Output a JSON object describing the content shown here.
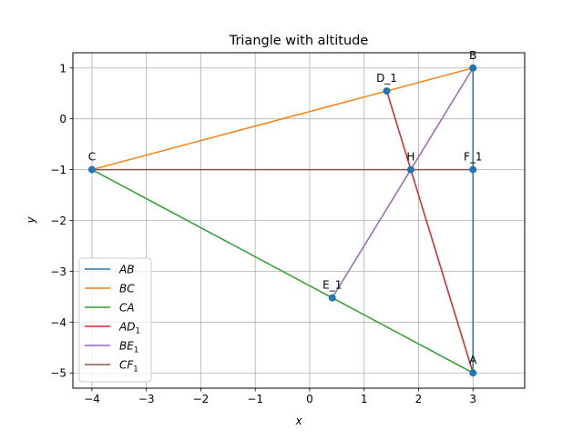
{
  "chart_data": {
    "type": "line",
    "title": "Triangle with altitude",
    "xlabel": "x",
    "ylabel": "y",
    "xlim": [
      -4.35,
      3.95
    ],
    "ylim": [
      -5.3,
      1.3
    ],
    "grid": true,
    "legend_position": "lower-left",
    "xticks": [
      -4,
      -3,
      -2,
      -1,
      0,
      1,
      2,
      3
    ],
    "xtick_labels": [
      "−4",
      "−3",
      "−2",
      "−1",
      "0",
      "1",
      "2",
      "3"
    ],
    "yticks": [
      -5,
      -4,
      -3,
      -2,
      -1,
      0,
      1
    ],
    "ytick_labels": [
      "−5",
      "−4",
      "−3",
      "−2",
      "−1",
      "0",
      "1"
    ],
    "series": [
      {
        "name": "AB",
        "sub": "",
        "color": "#1f77b4",
        "points": [
          [
            3,
            -5
          ],
          [
            3,
            1
          ]
        ]
      },
      {
        "name": "BC",
        "sub": "",
        "color": "#ff7f0e",
        "points": [
          [
            3,
            1
          ],
          [
            -4,
            -1
          ]
        ]
      },
      {
        "name": "CA",
        "sub": "",
        "color": "#2ca02c",
        "points": [
          [
            -4,
            -1
          ],
          [
            3,
            -5
          ]
        ]
      },
      {
        "name": "AD",
        "sub": "1",
        "color": "#d62728",
        "points": [
          [
            3,
            -5
          ],
          [
            1.415,
            0.547
          ]
        ]
      },
      {
        "name": "BE",
        "sub": "1",
        "color": "#9467bd",
        "points": [
          [
            3,
            1
          ],
          [
            0.415,
            -3.523
          ]
        ]
      },
      {
        "name": "CF",
        "sub": "1",
        "color": "#8c564b",
        "points": [
          [
            -4,
            -1
          ],
          [
            3,
            -1
          ]
        ]
      }
    ],
    "labeled_points": [
      {
        "label": "A",
        "x": 3,
        "y": -5
      },
      {
        "label": "B",
        "x": 3,
        "y": 1
      },
      {
        "label": "C",
        "x": -4,
        "y": -1
      },
      {
        "label": "D_1",
        "x": 1.415,
        "y": 0.547
      },
      {
        "label": "E_1",
        "x": 0.415,
        "y": -3.523
      },
      {
        "label": "F_1",
        "x": 3,
        "y": -1
      },
      {
        "label": "H",
        "x": 1.857,
        "y": -1
      }
    ],
    "marker_color": "#1f77b4"
  }
}
